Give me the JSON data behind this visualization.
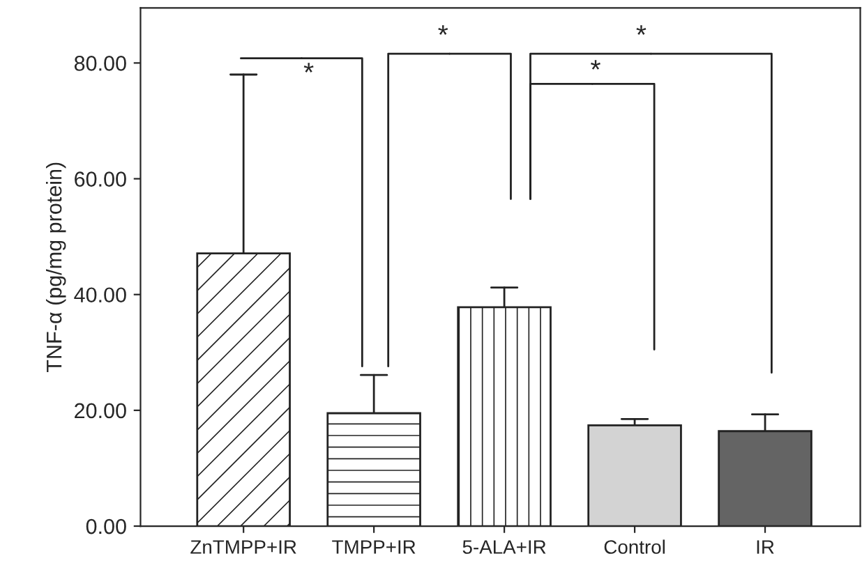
{
  "chart_data": {
    "type": "bar",
    "ylabel": "TNF-α (pg/mg protein)",
    "categories": [
      "ZnTMPP+IR",
      "TMPP+IR",
      "5-ALA+IR",
      "Control",
      "IR"
    ],
    "values": [
      47.1,
      19.5,
      37.8,
      17.4,
      16.4
    ],
    "colors": [
      "#ffffff",
      "#ffffff",
      "#ffffff",
      "#d3d3d3",
      "#646464"
    ],
    "errors": [
      [
        47.1,
        78.0
      ],
      [
        19.5,
        26.1
      ],
      [
        37.8,
        41.2
      ],
      [
        17.4,
        18.5
      ],
      [
        16.4,
        19.3
      ]
    ],
    "ylim": [
      0,
      89.5
    ],
    "yticks": [
      {
        "value": 0,
        "label": "0.00"
      },
      {
        "value": 20,
        "label": "20.00"
      },
      {
        "value": 40,
        "label": "40.00"
      },
      {
        "value": 60,
        "label": "60.00"
      },
      {
        "value": 80,
        "label": "80.00"
      }
    ],
    "annotations": [
      "*",
      "*",
      "*",
      "*"
    ],
    "grid": false,
    "legend": false
  }
}
